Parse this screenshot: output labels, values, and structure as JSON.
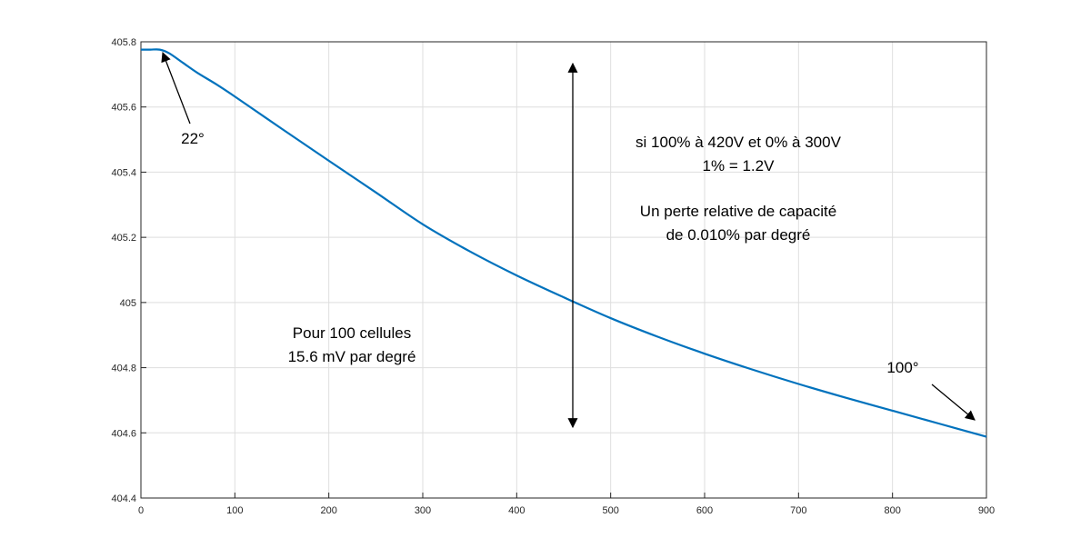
{
  "chart_data": {
    "type": "line",
    "title": "",
    "xlabel": "",
    "ylabel": "",
    "xlim": [
      0,
      900
    ],
    "ylim": [
      404.4,
      405.8
    ],
    "grid": true,
    "x_ticks": [
      0,
      100,
      200,
      300,
      400,
      500,
      600,
      700,
      800,
      900
    ],
    "y_ticks": [
      404.4,
      404.6,
      404.8,
      405,
      405.2,
      405.4,
      405.6,
      405.8
    ],
    "y_tick_labels": [
      "404.4",
      "404.6",
      "404.8",
      "405",
      "405.2",
      "405.4",
      "405.6",
      "405.8"
    ],
    "series": [
      {
        "color": "#0072BD",
        "x": [
          0,
          10,
          20,
          30,
          45,
          60,
          80,
          100,
          150,
          200,
          250,
          300,
          350,
          400,
          450,
          500,
          550,
          600,
          650,
          700,
          750,
          800,
          850,
          900
        ],
        "y": [
          405.776,
          405.776,
          405.776,
          405.765,
          405.735,
          405.705,
          405.67,
          405.632,
          405.533,
          405.435,
          405.338,
          405.24,
          405.157,
          405.083,
          405.016,
          404.952,
          404.895,
          404.843,
          404.795,
          404.75,
          404.708,
          404.668,
          404.628,
          404.588
        ]
      }
    ],
    "annotations": [
      {
        "text": "22°",
        "color": "#1a8a1a",
        "x": 48,
        "y": 405.61
      },
      {
        "text": "100°",
        "color": "#ff0000",
        "x": 812,
        "y": 404.79
      },
      {
        "text": "si 100% à 420V et 0% à 300V",
        "x": 630,
        "y": 405.33
      },
      {
        "text": "1% = 1.2V",
        "x": 630,
        "y": 405.26
      },
      {
        "text": "Un perte relative de capacité",
        "x": 630,
        "y": 405.16
      },
      {
        "text": "de 0.010% par degré",
        "x": 630,
        "y": 405.09
      },
      {
        "text": "Pour 100 cellules",
        "x": 225,
        "y": 404.98
      },
      {
        "text": "15.6 mV par degré",
        "x": 225,
        "y": 404.91
      }
    ]
  }
}
